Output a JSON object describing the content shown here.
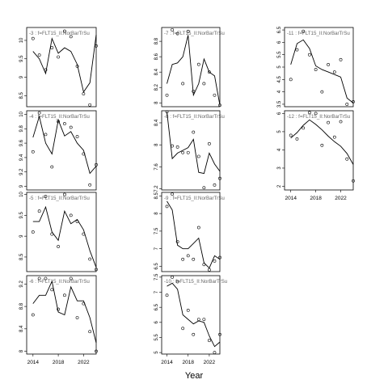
{
  "figure": {
    "xlabel": "Year"
  },
  "chart_data": [
    {
      "type": "scatter",
      "title": "-3 : f=FLT15_II:NorBarTrSu",
      "xlim": [
        2013,
        2024
      ],
      "ylim": [
        8.2,
        10.35
      ],
      "yticks": [
        8.5,
        9.0,
        9.5,
        10.0
      ],
      "xticks": [],
      "points": [
        [
          2014,
          10.05
        ],
        [
          2015,
          9.6
        ],
        [
          2016,
          9.2
        ],
        [
          2017,
          9.8
        ],
        [
          2018,
          9.55
        ],
        [
          2019,
          10.25
        ],
        [
          2020,
          10.1
        ],
        [
          2021,
          9.3
        ],
        [
          2022,
          8.55
        ],
        [
          2023,
          8.25
        ],
        [
          2024,
          9.85
        ]
      ],
      "fit": [
        [
          2014,
          9.7
        ],
        [
          2015,
          9.5
        ],
        [
          2016,
          9.1
        ],
        [
          2017,
          10.05
        ],
        [
          2018,
          9.65
        ],
        [
          2019,
          9.8
        ],
        [
          2020,
          9.7
        ],
        [
          2021,
          9.35
        ],
        [
          2022,
          8.6
        ],
        [
          2023,
          8.85
        ],
        [
          2024,
          10.15
        ]
      ]
    },
    {
      "type": "scatter",
      "title": "-7 : f=FLT15_II:NorBarTrSu",
      "xlim": [
        2013,
        2024
      ],
      "ylim": [
        7.95,
        8.98
      ],
      "yticks": [
        8.0,
        8.2,
        8.4,
        8.6,
        8.8
      ],
      "xticks": [],
      "points": [
        [
          2014,
          8.1
        ],
        [
          2015,
          8.95
        ],
        [
          2016,
          8.9
        ],
        [
          2017,
          8.25
        ],
        [
          2018,
          8.93
        ],
        [
          2019,
          8.15
        ],
        [
          2020,
          8.5
        ],
        [
          2021,
          8.25
        ],
        [
          2022,
          8.4
        ],
        [
          2023,
          8.1
        ],
        [
          2024,
          7.97
        ]
      ],
      "fit": [
        [
          2014,
          8.25
        ],
        [
          2015,
          8.5
        ],
        [
          2016,
          8.52
        ],
        [
          2017,
          8.6
        ],
        [
          2018,
          8.88
        ],
        [
          2019,
          8.1
        ],
        [
          2020,
          8.25
        ],
        [
          2021,
          8.57
        ],
        [
          2022,
          8.4
        ],
        [
          2023,
          8.35
        ],
        [
          2024,
          7.97
        ]
      ]
    },
    {
      "type": "scatter",
      "title": "-11 : f=FLT15_II:NorBarTrSu",
      "xlim": [
        2013,
        2024
      ],
      "ylim": [
        3.4,
        6.6
      ],
      "yticks": [
        3.5,
        4.0,
        4.5,
        5.0,
        5.5,
        6.0,
        6.5
      ],
      "xticks": [],
      "points": [
        [
          2014,
          4.5
        ],
        [
          2015,
          5.7
        ],
        [
          2016,
          6.45
        ],
        [
          2017,
          5.5
        ],
        [
          2018,
          4.9
        ],
        [
          2019,
          4.0
        ],
        [
          2020,
          5.1
        ],
        [
          2021,
          4.8
        ],
        [
          2022,
          5.3
        ],
        [
          2023,
          3.5
        ],
        [
          2024,
          3.6
        ]
      ],
      "fit": [
        [
          2014,
          5.1
        ],
        [
          2015,
          5.95
        ],
        [
          2016,
          6.1
        ],
        [
          2017,
          5.75
        ],
        [
          2018,
          5.05
        ],
        [
          2019,
          4.9
        ],
        [
          2020,
          4.8
        ],
        [
          2021,
          4.7
        ],
        [
          2022,
          4.6
        ],
        [
          2023,
          3.75
        ],
        [
          2024,
          3.55
        ]
      ]
    },
    {
      "type": "scatter",
      "title": "-4 : f=FLT15_II:NorBarTrSu",
      "xlim": [
        2013,
        2024
      ],
      "ylim": [
        8.95,
        10.05
      ],
      "yticks": [
        9.0,
        9.2,
        9.4,
        9.6,
        9.8,
        10.0
      ],
      "xticks": [],
      "points": [
        [
          2014,
          9.48
        ],
        [
          2015,
          10.02
        ],
        [
          2016,
          9.72
        ],
        [
          2017,
          9.27
        ],
        [
          2018,
          9.9
        ],
        [
          2019,
          9.87
        ],
        [
          2020,
          9.82
        ],
        [
          2021,
          9.69
        ],
        [
          2022,
          9.45
        ],
        [
          2023,
          9.02
        ],
        [
          2024,
          9.3
        ]
      ],
      "fit": [
        [
          2014,
          9.68
        ],
        [
          2015,
          9.97
        ],
        [
          2016,
          9.6
        ],
        [
          2017,
          9.45
        ],
        [
          2018,
          9.92
        ],
        [
          2019,
          9.7
        ],
        [
          2020,
          9.76
        ],
        [
          2021,
          9.6
        ],
        [
          2022,
          9.5
        ],
        [
          2023,
          9.18
        ],
        [
          2024,
          9.28
        ]
      ]
    },
    {
      "type": "scatter",
      "title": "-8 : f=FLT15_II:NorBarTrSu",
      "xlim": [
        2013,
        2024
      ],
      "ylim": [
        7.18,
        8.62
      ],
      "yticks": [
        7.2,
        7.6,
        8.0,
        8.4
      ],
      "xticks": [],
      "points": [
        [
          2014,
          8.6
        ],
        [
          2015,
          7.98
        ],
        [
          2016,
          7.96
        ],
        [
          2017,
          7.86
        ],
        [
          2018,
          7.86
        ],
        [
          2019,
          8.23
        ],
        [
          2020,
          7.79
        ],
        [
          2021,
          7.22
        ],
        [
          2022,
          8.02
        ],
        [
          2023,
          7.27
        ],
        [
          2024,
          7.39
        ]
      ],
      "fit": [
        [
          2014,
          8.6
        ],
        [
          2015,
          7.75
        ],
        [
          2016,
          7.85
        ],
        [
          2017,
          7.9
        ],
        [
          2018,
          7.95
        ],
        [
          2019,
          8.1
        ],
        [
          2020,
          7.5
        ],
        [
          2021,
          7.48
        ],
        [
          2022,
          7.85
        ],
        [
          2023,
          7.65
        ],
        [
          2024,
          7.52
        ]
      ]
    },
    {
      "type": "scatter",
      "title": "-12 : f=FLT15_II:NorBarTrSu",
      "xlim": [
        2013,
        2024
      ],
      "ylim": [
        1.8,
        6.15
      ],
      "yticks": [
        2,
        3,
        4,
        5,
        6
      ],
      "xticks": [
        2014,
        2018,
        2022
      ],
      "points": [
        [
          2014,
          4.8
        ],
        [
          2015,
          4.6
        ],
        [
          2016,
          5.2
        ],
        [
          2017,
          6.05
        ],
        [
          2018,
          6.0
        ],
        [
          2019,
          4.25
        ],
        [
          2020,
          5.5
        ],
        [
          2021,
          4.7
        ],
        [
          2022,
          5.55
        ],
        [
          2023,
          3.5
        ],
        [
          2024,
          2.3
        ]
      ],
      "fit": [
        [
          2014,
          4.65
        ],
        [
          2015,
          4.95
        ],
        [
          2016,
          5.35
        ],
        [
          2017,
          5.65
        ],
        [
          2018,
          5.4
        ],
        [
          2019,
          5.1
        ],
        [
          2020,
          4.75
        ],
        [
          2021,
          4.45
        ],
        [
          2022,
          4.2
        ],
        [
          2023,
          3.8
        ],
        [
          2024,
          3.2
        ]
      ]
    },
    {
      "type": "scatter",
      "title": "-5 : f=FLT15_II:NorBarTrSu",
      "xlim": [
        2013,
        2024
      ],
      "ylim": [
        8.15,
        10.05
      ],
      "yticks": [
        8.5,
        9.0,
        9.5,
        10.0
      ],
      "xticks": [],
      "points": [
        [
          2014,
          9.1
        ],
        [
          2015,
          9.6
        ],
        [
          2016,
          9.95
        ],
        [
          2017,
          9.05
        ],
        [
          2018,
          8.75
        ],
        [
          2019,
          10.0
        ],
        [
          2020,
          9.5
        ],
        [
          2021,
          9.35
        ],
        [
          2022,
          9.05
        ],
        [
          2023,
          8.45
        ],
        [
          2024,
          8.2
        ]
      ],
      "fit": [
        [
          2014,
          9.35
        ],
        [
          2015,
          9.35
        ],
        [
          2016,
          9.7
        ],
        [
          2017,
          9.1
        ],
        [
          2018,
          8.9
        ],
        [
          2019,
          9.6
        ],
        [
          2020,
          9.3
        ],
        [
          2021,
          9.4
        ],
        [
          2022,
          9.15
        ],
        [
          2023,
          8.65
        ],
        [
          2024,
          8.25
        ]
      ]
    },
    {
      "type": "scatter",
      "title": "-9 : f=FLT15_II:NorBarTrSu",
      "xlim": [
        2013,
        2024
      ],
      "ylim": [
        6.35,
        8.6
      ],
      "yticks": [
        6.5,
        7.0,
        7.5,
        8.0,
        8.5
      ],
      "xticks": [],
      "points": [
        [
          2014,
          8.2
        ],
        [
          2015,
          8.55
        ],
        [
          2016,
          7.2
        ],
        [
          2017,
          6.7
        ],
        [
          2018,
          6.8
        ],
        [
          2019,
          6.7
        ],
        [
          2020,
          7.6
        ],
        [
          2021,
          6.55
        ],
        [
          2022,
          6.4
        ],
        [
          2023,
          6.65
        ],
        [
          2024,
          6.75
        ]
      ],
      "fit": [
        [
          2014,
          8.35
        ],
        [
          2015,
          8.1
        ],
        [
          2016,
          7.1
        ],
        [
          2017,
          7.0
        ],
        [
          2018,
          7.0
        ],
        [
          2019,
          7.15
        ],
        [
          2020,
          7.3
        ],
        [
          2021,
          6.6
        ],
        [
          2022,
          6.45
        ],
        [
          2023,
          6.8
        ],
        [
          2024,
          6.7
        ]
      ]
    },
    {
      "type": "scatter",
      "title": "-6 : f=FLT15_II:NorBarTrSu",
      "xlim": [
        2013,
        2024
      ],
      "ylim": [
        7.95,
        9.35
      ],
      "yticks": [
        8.0,
        8.4,
        8.8,
        9.2
      ],
      "xticks": [
        2014,
        2018,
        2022
      ],
      "points": [
        [
          2014,
          8.65
        ],
        [
          2015,
          9.3
        ],
        [
          2016,
          9.3
        ],
        [
          2017,
          9.1
        ],
        [
          2018,
          8.75
        ],
        [
          2019,
          9.0
        ],
        [
          2020,
          9.3
        ],
        [
          2021,
          8.6
        ],
        [
          2022,
          8.85
        ],
        [
          2023,
          8.35
        ],
        [
          2024,
          8.0
        ]
      ],
      "fit": [
        [
          2014,
          8.85
        ],
        [
          2015,
          9.0
        ],
        [
          2016,
          9.0
        ],
        [
          2017,
          9.25
        ],
        [
          2018,
          8.7
        ],
        [
          2019,
          8.65
        ],
        [
          2020,
          9.15
        ],
        [
          2021,
          8.9
        ],
        [
          2022,
          8.9
        ],
        [
          2023,
          8.6
        ],
        [
          2024,
          8.15
        ]
      ]
    },
    {
      "type": "scatter",
      "title": "-10 : f=FLT15_II:NorBarTrSu",
      "xlim": [
        2013,
        2024
      ],
      "ylim": [
        4.95,
        7.55
      ],
      "yticks": [
        5.0,
        5.5,
        6.0,
        6.5,
        7.0,
        7.5
      ],
      "xticks": [
        2014,
        2018,
        2022
      ],
      "points": [
        [
          2014,
          6.9
        ],
        [
          2015,
          7.5
        ],
        [
          2016,
          7.35
        ],
        [
          2017,
          5.8
        ],
        [
          2018,
          6.4
        ],
        [
          2019,
          5.6
        ],
        [
          2020,
          6.1
        ],
        [
          2021,
          6.1
        ],
        [
          2022,
          5.4
        ],
        [
          2023,
          5.0
        ],
        [
          2024,
          5.6
        ]
      ],
      "fit": [
        [
          2014,
          7.2
        ],
        [
          2015,
          7.3
        ],
        [
          2016,
          7.1
        ],
        [
          2017,
          6.25
        ],
        [
          2018,
          6.1
        ],
        [
          2019,
          5.95
        ],
        [
          2020,
          6.05
        ],
        [
          2021,
          6.0
        ],
        [
          2022,
          5.55
        ],
        [
          2023,
          5.2
        ],
        [
          2024,
          5.35
        ]
      ]
    }
  ]
}
